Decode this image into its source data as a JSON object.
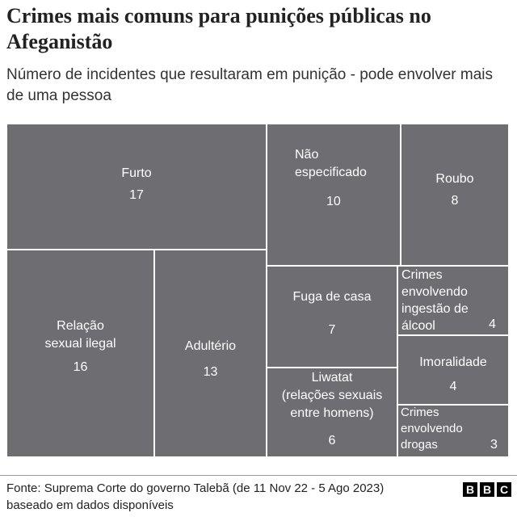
{
  "header": {
    "title": "Crimes mais comuns para punições públicas no Afeganistão",
    "subtitle": "Número de incidentes que resultaram em punição - pode envolver mais de uma pessoa"
  },
  "colors": {
    "tile": "#6e6d72",
    "tile_border": "#ffffff",
    "text": "#ffffff"
  },
  "chart_data": {
    "type": "treemap",
    "title": "Crimes mais comuns para punições públicas no Afeganistão",
    "subtitle": "Número de incidentes que resultaram em punição - pode envolver mais de uma pessoa",
    "items": [
      {
        "label": "Furto",
        "value": 17
      },
      {
        "label": "Relação\nsexual ilegal",
        "value": 16
      },
      {
        "label": "Adultério",
        "value": 13
      },
      {
        "label": "Não\nespecificado",
        "value": 10
      },
      {
        "label": "Roubo",
        "value": 8
      },
      {
        "label": "Fuga de casa",
        "value": 7
      },
      {
        "label": "Liwatat\n(relações sexuais\nentre homens)",
        "value": 6
      },
      {
        "label": "Crimes\nenvolvendo\ningestão de\nálcool",
        "value": 4
      },
      {
        "label": "Imoralidade",
        "value": 4
      },
      {
        "label": "Crimes\nenvolvendo\ndrogas",
        "value": 3
      }
    ]
  },
  "footer": {
    "source": "Fonte: Suprema Corte do governo Talebã (de 11 Nov 22 - 5 Ago 2023) baseado em dados disponíveis",
    "logo_letters": [
      "B",
      "B",
      "C"
    ]
  }
}
